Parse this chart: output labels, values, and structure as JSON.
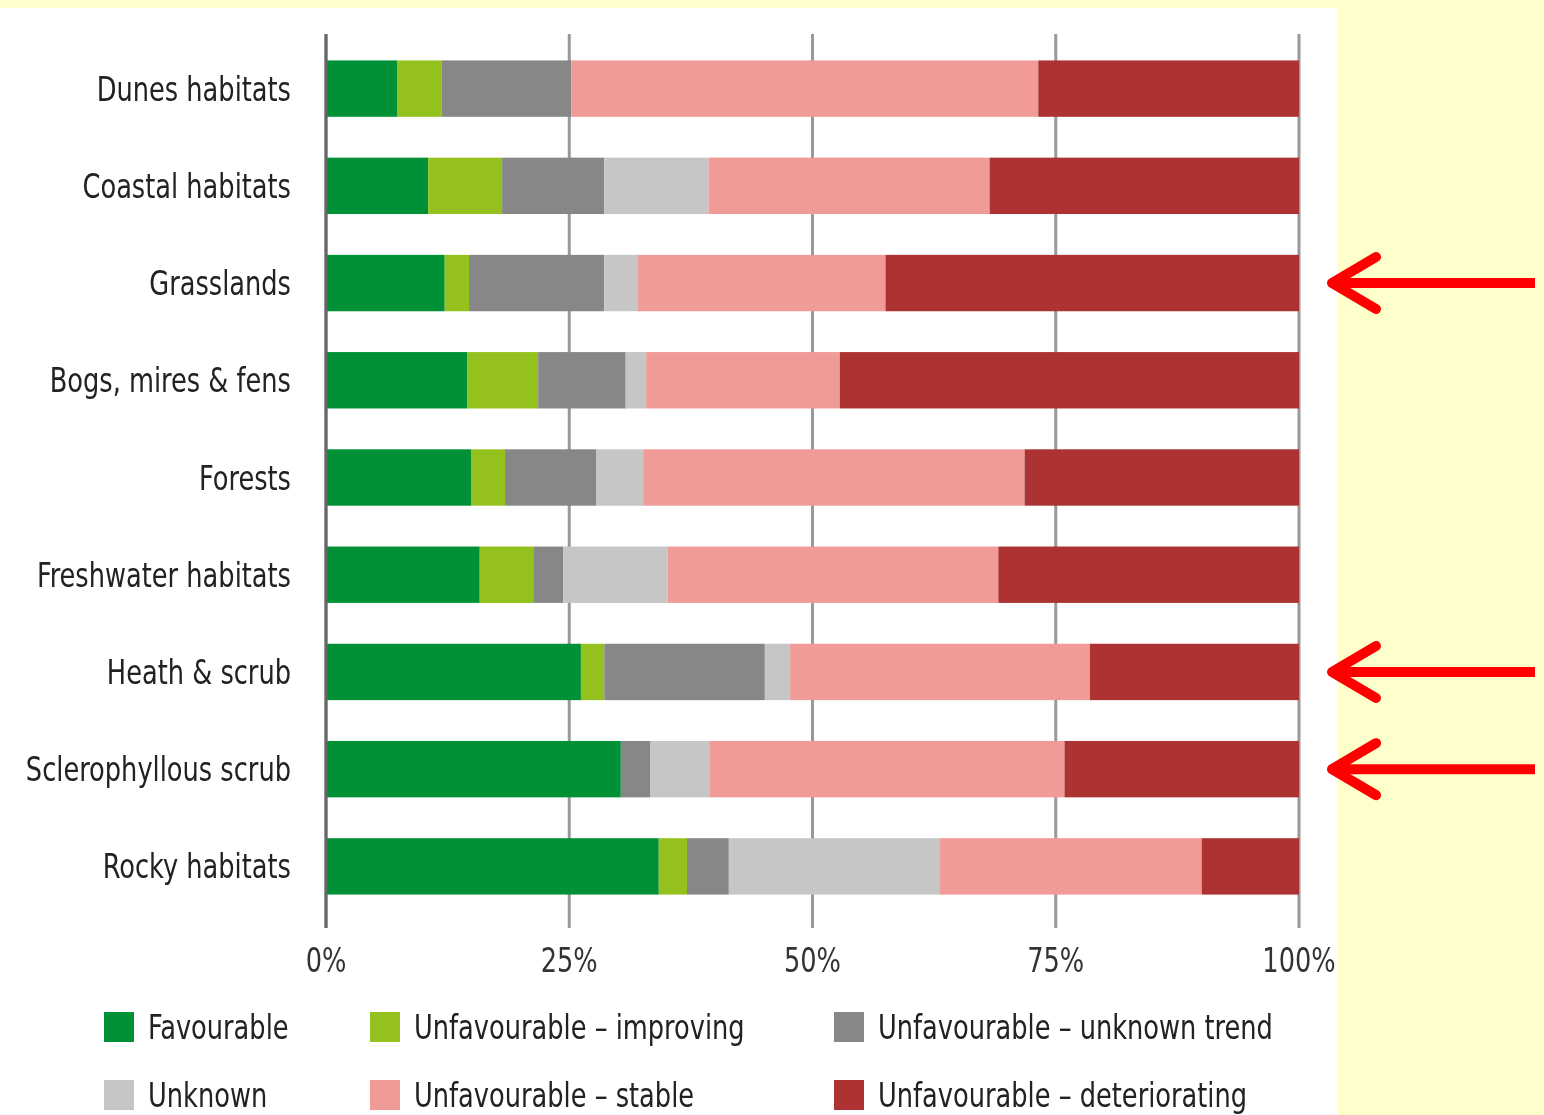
{
  "chart_data": {
    "type": "bar",
    "orientation": "horizontal",
    "stacked": true,
    "categories": [
      "Dunes habitats",
      "Coastal habitats",
      "Grasslands",
      "Bogs, mires & fens",
      "Forests",
      "Freshwater habitats",
      "Heath & scrub",
      "Sclerophyllous scrub",
      "Rocky habitats"
    ],
    "series": [
      {
        "name": "Favourable",
        "color": "#009036",
        "values": [
          7.3,
          10.5,
          12.2,
          14.5,
          14.9,
          15.8,
          26.2,
          30.3,
          34.2
        ]
      },
      {
        "name": "Unfavourable – improving",
        "color": "#95c11f",
        "values": [
          4.6,
          7.6,
          2.5,
          7.3,
          3.5,
          5.5,
          2.4,
          0,
          2.9
        ]
      },
      {
        "name": "Unfavourable – unknown trend",
        "color": "#878787",
        "values": [
          13.3,
          10.5,
          13.9,
          9.0,
          9.4,
          3.1,
          16.5,
          3.0,
          4.3
        ]
      },
      {
        "name": "Unknown",
        "color": "#c6c6c6",
        "values": [
          0,
          10.7,
          3.4,
          2.1,
          4.8,
          10.7,
          2.6,
          6.1,
          21.7
        ]
      },
      {
        "name": "Unfavourable – stable",
        "color": "#f09b98",
        "values": [
          48.0,
          28.9,
          25.5,
          19.9,
          39.2,
          34.0,
          30.8,
          36.5,
          26.9
        ]
      },
      {
        "name": "Unfavourable – deteriorating",
        "color": "#ad3333",
        "values": [
          26.8,
          31.8,
          42.5,
          47.2,
          28.2,
          30.9,
          21.5,
          24.1,
          10.0
        ]
      }
    ],
    "xlim": [
      0,
      100
    ],
    "xticks": [
      {
        "value": 0,
        "label": "0%"
      },
      {
        "value": 25,
        "label": "25%"
      },
      {
        "value": 50,
        "label": "50%"
      },
      {
        "value": 75,
        "label": "75%"
      },
      {
        "value": 100,
        "label": "100%"
      }
    ],
    "grid": "x",
    "legend": "bottom"
  }
}
